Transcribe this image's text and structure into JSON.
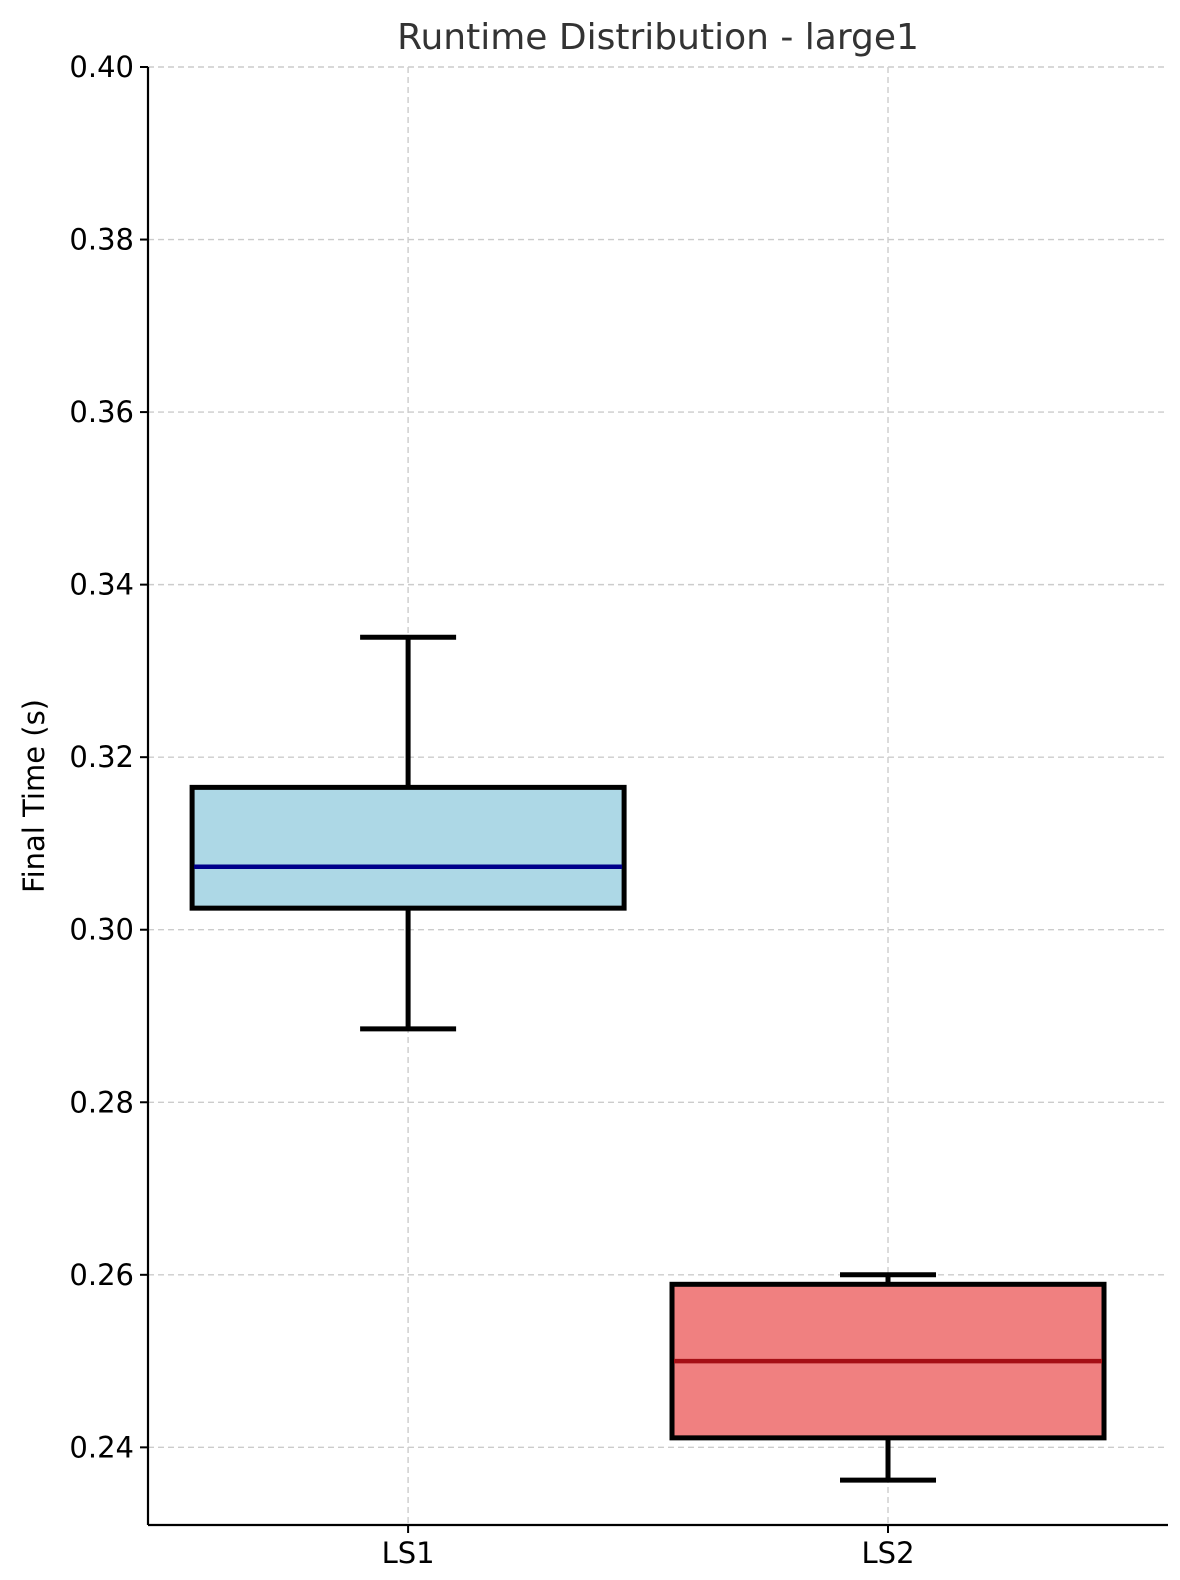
{
  "chart_data": {
    "type": "box",
    "title": "Runtime Distribution - large1",
    "xlabel": "",
    "ylabel": "Final Time (s)",
    "ylim": [
      0.231,
      0.4
    ],
    "yticks": [
      "0.24",
      "0.26",
      "0.28",
      "0.30",
      "0.32",
      "0.34",
      "0.36",
      "0.38",
      "0.40"
    ],
    "grid": true,
    "categories": [
      "LS1",
      "LS2"
    ],
    "boxes": [
      {
        "category": "LS1",
        "whisker_low": 0.2885,
        "q1": 0.3025,
        "median": 0.3073,
        "q3": 0.3165,
        "whisker_high": 0.3339,
        "fill_color": "#add8e6",
        "median_color": "#00008b"
      },
      {
        "category": "LS2",
        "whisker_low": 0.2362,
        "q1": 0.2411,
        "median": 0.25,
        "q3": 0.2589,
        "whisker_high": 0.26,
        "fill_color": "#f08080",
        "median_color": "#a50f15"
      }
    ]
  }
}
